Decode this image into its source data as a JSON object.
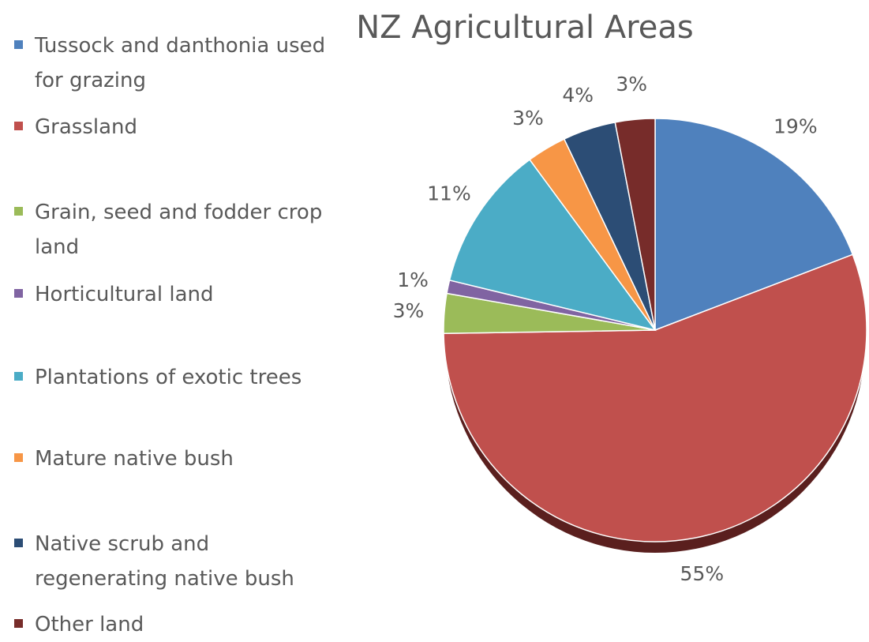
{
  "chart_data": {
    "type": "pie",
    "title": "NZ Agricultural Areas",
    "categories": [
      "Tussock and danthonia used for grazing",
      "Grassland",
      "Grain, seed and fodder crop land",
      "Horticultural land",
      "Plantations of exotic trees",
      "Mature native bush",
      "Native scrub and regenerating native bush",
      "Other land"
    ],
    "values": [
      19,
      55,
      3,
      1,
      11,
      3,
      4,
      3
    ],
    "value_labels": [
      "19%",
      "55%",
      "3%",
      "1%",
      "11%",
      "3%",
      "4%",
      "3%"
    ],
    "colors": [
      "#4f81bd",
      "#c0504d",
      "#9bbb59",
      "#8064a2",
      "#4bacc6",
      "#f79646",
      "#2c4d75",
      "#772c2a"
    ],
    "legend": "left"
  }
}
